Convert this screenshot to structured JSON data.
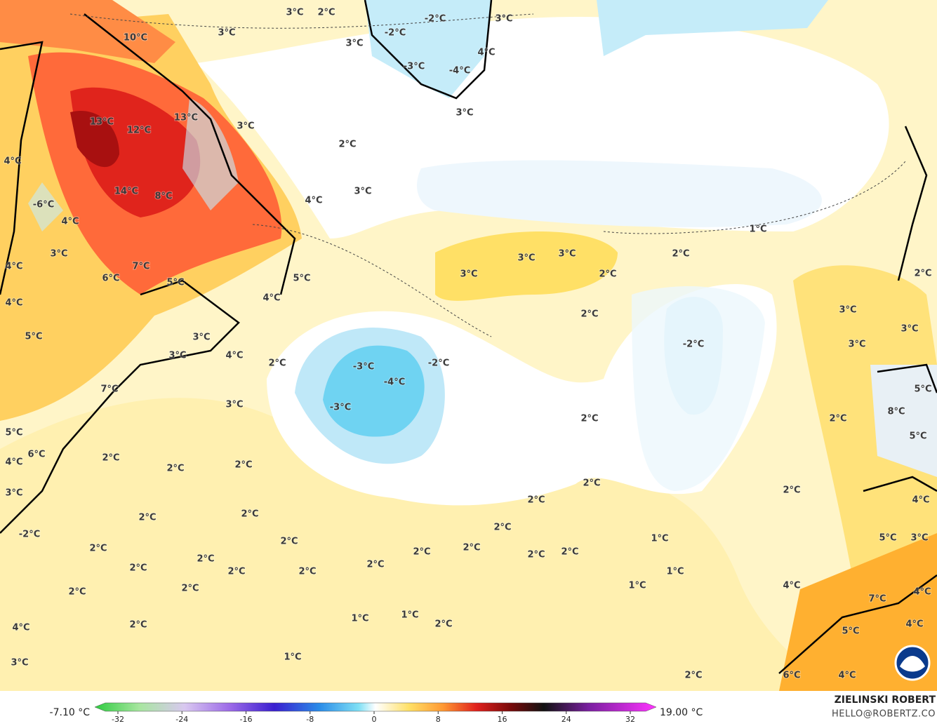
{
  "map": {
    "labels": [
      "10°C",
      "3°C",
      "3°C",
      "2°C",
      "3°C",
      "-2°C",
      "-2°C",
      "3°C",
      "4°C",
      "-3°C",
      "-4°C",
      "3°C",
      "13°C",
      "12°C",
      "13°C",
      "3°C",
      "2°C",
      "4°C",
      "14°C",
      "8°C",
      "3°C",
      "4°C",
      "-6°C",
      "4°C",
      "1°C",
      "3°C",
      "3°C",
      "3°C",
      "2°C",
      "4°C",
      "7°C",
      "3°C",
      "2°C",
      "6°C",
      "5°C",
      "5°C",
      "2°C",
      "4°C",
      "4°C",
      "2°C",
      "3°C",
      "3°C",
      "5°C",
      "3°C",
      "-2°C",
      "3°C",
      "3°C",
      "4°C",
      "2°C",
      "-3°C",
      "-2°C",
      "-4°C",
      "7°C",
      "5°C",
      "3°C",
      "-3°C",
      "8°C",
      "2°C",
      "2°C",
      "5°C",
      "5°C",
      "6°C",
      "4°C",
      "2°C",
      "2°C",
      "2°C",
      "2°C",
      "3°C",
      "2°C",
      "4°C",
      "2°C",
      "2°C",
      "2°C",
      "2°C",
      "-2°C",
      "2°C",
      "1°C",
      "5°C",
      "3°C",
      "2°C",
      "2°C",
      "2°C",
      "2°C",
      "2°C",
      "2°C",
      "2°C",
      "2°C",
      "2°C",
      "2°C",
      "1°C",
      "1°C",
      "4°C",
      "2°C",
      "2°C",
      "4°C",
      "7°C",
      "1°C",
      "1°C",
      "2°C",
      "2°C",
      "4°C",
      "4°C",
      "5°C",
      "1°C",
      "3°C",
      "2°C",
      "6°C",
      "4°C"
    ]
  },
  "colorbar": {
    "min_label": "-7.10 °C",
    "max_label": "19.00 °C",
    "ticks": [
      -32,
      -24,
      -16,
      -8,
      0,
      8,
      16,
      24,
      32
    ]
  },
  "credit": {
    "name": "ZIELINSKI ROBERT",
    "email": "HELLO@ROBERTZ.CO"
  }
}
